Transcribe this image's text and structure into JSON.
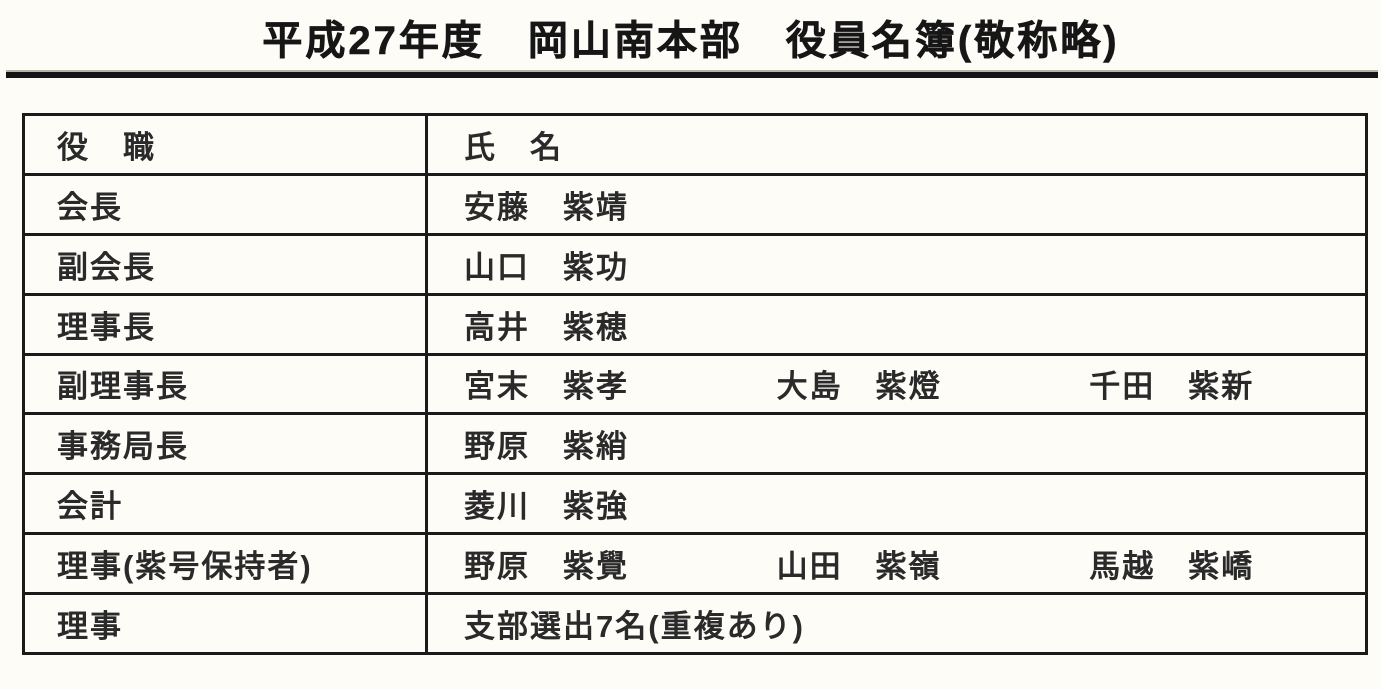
{
  "page": {
    "title": "平成27年度　岡山南本部　役員名簿(敬称略)"
  },
  "table": {
    "headers": {
      "role": "役　職",
      "name": "氏　名"
    },
    "rows": [
      {
        "role": "会長",
        "names": [
          "安藤　紫靖"
        ]
      },
      {
        "role": "副会長",
        "names": [
          "山口　紫功"
        ]
      },
      {
        "role": "理事長",
        "names": [
          "高井　紫穂"
        ]
      },
      {
        "role": "副理事長",
        "names": [
          "宮末　紫孝",
          "大島　紫燈",
          "千田　紫新"
        ]
      },
      {
        "role": "事務局長",
        "names": [
          "野原　紫綃"
        ]
      },
      {
        "role": "会計",
        "names": [
          "菱川　紫強"
        ]
      },
      {
        "role": "理事(紫号保持者)",
        "names": [
          "野原　紫覺",
          "山田　紫嶺",
          "馬越　紫嶠"
        ]
      },
      {
        "role": "理事",
        "names": [
          "支部選出7名(重複あり)"
        ]
      }
    ]
  }
}
